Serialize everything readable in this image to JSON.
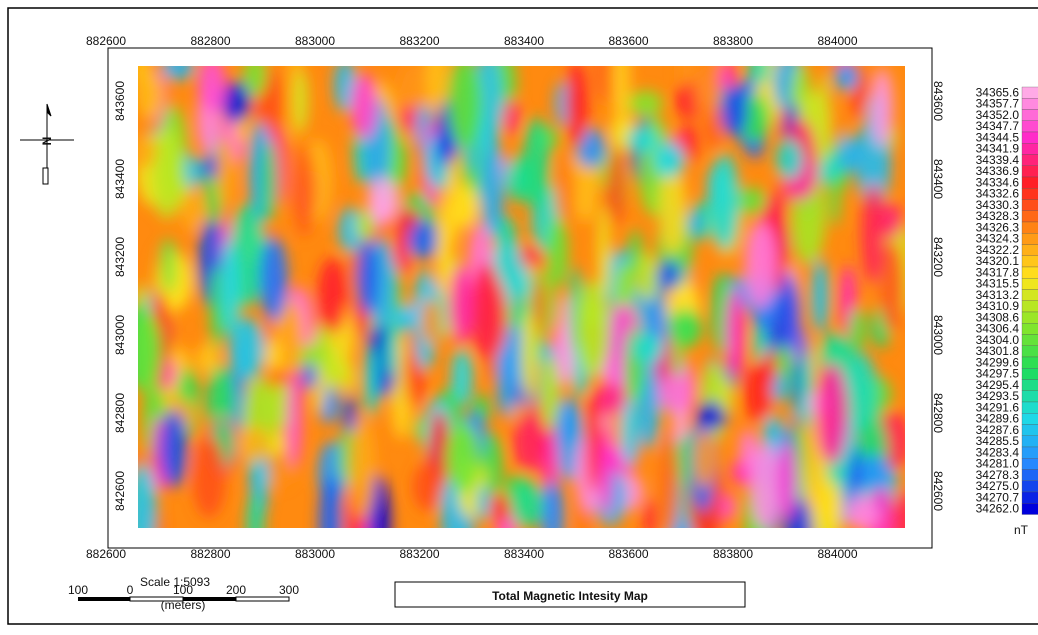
{
  "map": {
    "title": "Total Magnetic Intesity Map",
    "x_ticks": [
      882600,
      882800,
      883000,
      883200,
      883400,
      883600,
      883800,
      884000
    ],
    "y_ticks": [
      842600,
      842800,
      843000,
      843200,
      843400,
      843600
    ],
    "north_label": "N",
    "legend": {
      "unit": "nT",
      "labels": [
        "34365.6",
        "34357.7",
        "34352.0",
        "34347.7",
        "34344.5",
        "34341.9",
        "34339.4",
        "34336.9",
        "34334.6",
        "34332.6",
        "34330.3",
        "34328.3",
        "34326.3",
        "34324.3",
        "34322.2",
        "34320.1",
        "34317.8",
        "34315.5",
        "34313.2",
        "34310.9",
        "34308.6",
        "34306.4",
        "34304.0",
        "34301.8",
        "34299.6",
        "34297.5",
        "34295.4",
        "34293.5",
        "34291.6",
        "34289.6",
        "34287.6",
        "34285.5",
        "34283.4",
        "34281.0",
        "34278.3",
        "34275.0",
        "34270.7",
        "34262.0"
      ]
    },
    "scale": {
      "title": "Scale 1:5093",
      "labels": [
        "100",
        "0",
        "100",
        "200",
        "300"
      ],
      "unit": "(meters)"
    }
  }
}
